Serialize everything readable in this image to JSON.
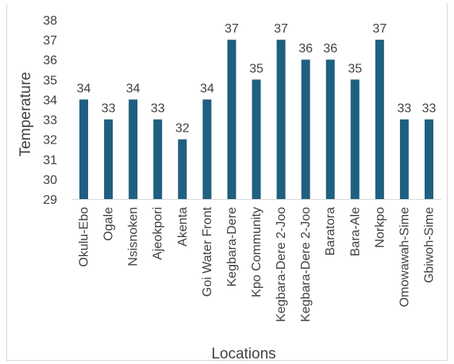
{
  "chart_data": {
    "type": "bar",
    "title": "",
    "xlabel": "Locations",
    "ylabel": "Temperature",
    "ylim": [
      29,
      38
    ],
    "yticks": [
      29,
      30,
      31,
      32,
      33,
      34,
      35,
      36,
      37,
      38
    ],
    "grid": false,
    "legend": "none",
    "bar_color": "#1f5f80",
    "categories": [
      "Okulu-Ebo",
      "Ogale",
      "Nsisnoken",
      "Ajeokpori",
      "Akenta",
      "Goi Water Front",
      "Kegbara-Dere",
      "Kpo Community",
      "Kegbara-Dere 2-Joo",
      "Kegbara-Dere 2-Joo",
      "Baratora",
      "Bara-Ale",
      "Norkpo",
      "Omowawah-Sime",
      "Gbiwoh-Sime"
    ],
    "values": [
      34,
      33,
      34,
      33,
      32,
      34,
      37,
      35,
      37,
      36,
      36,
      35,
      37,
      33,
      33
    ]
  }
}
